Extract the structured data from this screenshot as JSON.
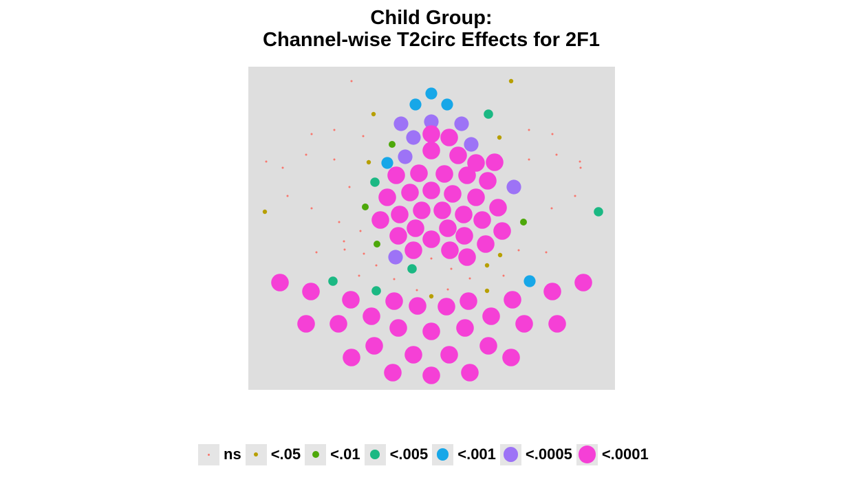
{
  "chart_data": {
    "type": "scatter",
    "title": "Child Group:",
    "subtitle": "Channel-wise T2circ Effects for 2F1",
    "panel_background": "#dedede",
    "grid": false,
    "legend_position": "bottom",
    "categories": [
      {
        "label": "ns",
        "color": "#f8766d"
      },
      {
        "label": "<.05",
        "color": "#b79f00"
      },
      {
        "label": "<.01",
        "color": "#4da80a"
      },
      {
        "label": "<.005",
        "color": "#1bb883"
      },
      {
        "label": "<.001",
        "color": "#17a7e8"
      },
      {
        "label": "<.0005",
        "color": "#9d73f6"
      },
      {
        "label": "<.0001",
        "color": "#f540d6"
      }
    ],
    "x_range": [
      0,
      533
    ],
    "y_range": [
      0,
      470
    ],
    "points": [
      [
        150,
        21,
        0
      ],
      [
        382,
        21,
        1
      ],
      [
        266,
        39,
        4
      ],
      [
        243,
        55,
        4
      ],
      [
        289,
        55,
        4
      ],
      [
        182,
        69,
        1
      ],
      [
        349,
        69,
        3
      ],
      [
        222,
        83,
        5
      ],
      [
        266,
        80,
        5
      ],
      [
        310,
        83,
        5
      ],
      [
        92,
        98,
        0
      ],
      [
        125,
        92,
        0
      ],
      [
        167,
        101,
        0
      ],
      [
        240,
        103,
        5
      ],
      [
        266,
        98,
        6
      ],
      [
        292,
        103,
        6
      ],
      [
        365,
        103,
        1
      ],
      [
        408,
        92,
        0
      ],
      [
        442,
        98,
        0
      ],
      [
        209,
        113,
        2
      ],
      [
        324,
        113,
        5
      ],
      [
        266,
        122,
        6
      ],
      [
        84,
        128,
        0
      ],
      [
        125,
        135,
        0
      ],
      [
        448,
        128,
        0
      ],
      [
        408,
        135,
        0
      ],
      [
        228,
        131,
        5
      ],
      [
        305,
        129,
        6
      ],
      [
        331,
        140,
        6
      ],
      [
        358,
        139,
        6
      ],
      [
        26,
        138,
        0
      ],
      [
        50,
        147,
        0
      ],
      [
        175,
        139,
        1
      ],
      [
        202,
        140,
        4
      ],
      [
        482,
        138,
        0
      ],
      [
        483,
        147,
        0
      ],
      [
        215,
        158,
        6
      ],
      [
        248,
        155,
        6
      ],
      [
        285,
        156,
        6
      ],
      [
        318,
        158,
        6
      ],
      [
        348,
        166,
        6
      ],
      [
        184,
        168,
        3
      ],
      [
        147,
        175,
        0
      ],
      [
        386,
        175,
        5
      ],
      [
        57,
        188,
        0
      ],
      [
        475,
        188,
        0
      ],
      [
        235,
        183,
        6
      ],
      [
        266,
        180,
        6
      ],
      [
        297,
        185,
        6
      ],
      [
        202,
        190,
        6
      ],
      [
        331,
        190,
        6
      ],
      [
        24,
        211,
        1
      ],
      [
        92,
        206,
        0
      ],
      [
        170,
        204,
        2
      ],
      [
        252,
        209,
        6
      ],
      [
        282,
        209,
        6
      ],
      [
        220,
        215,
        6
      ],
      [
        313,
        215,
        6
      ],
      [
        363,
        205,
        6
      ],
      [
        441,
        206,
        0
      ],
      [
        509,
        211,
        3
      ],
      [
        192,
        223,
        6
      ],
      [
        340,
        223,
        6
      ],
      [
        132,
        226,
        0
      ],
      [
        400,
        226,
        2
      ],
      [
        163,
        239,
        0
      ],
      [
        243,
        235,
        6
      ],
      [
        290,
        235,
        6
      ],
      [
        218,
        246,
        6
      ],
      [
        314,
        246,
        6
      ],
      [
        369,
        239,
        6
      ],
      [
        266,
        251,
        6
      ],
      [
        139,
        254,
        0
      ],
      [
        187,
        258,
        2
      ],
      [
        345,
        258,
        6
      ],
      [
        240,
        267,
        6
      ],
      [
        293,
        267,
        6
      ],
      [
        99,
        270,
        0
      ],
      [
        140,
        266,
        0
      ],
      [
        168,
        272,
        0
      ],
      [
        393,
        267,
        0
      ],
      [
        433,
        270,
        0
      ],
      [
        318,
        277,
        6
      ],
      [
        214,
        277,
        5
      ],
      [
        266,
        279,
        0
      ],
      [
        366,
        274,
        1
      ],
      [
        186,
        289,
        0
      ],
      [
        295,
        294,
        0
      ],
      [
        347,
        289,
        1
      ],
      [
        238,
        294,
        3
      ],
      [
        46,
        314,
        6
      ],
      [
        123,
        312,
        3
      ],
      [
        161,
        304,
        0
      ],
      [
        212,
        309,
        0
      ],
      [
        245,
        325,
        0
      ],
      [
        290,
        324,
        0
      ],
      [
        322,
        308,
        0
      ],
      [
        371,
        304,
        0
      ],
      [
        409,
        312,
        4
      ],
      [
        487,
        314,
        6
      ],
      [
        91,
        327,
        6
      ],
      [
        186,
        326,
        3
      ],
      [
        266,
        334,
        1
      ],
      [
        347,
        326,
        1
      ],
      [
        442,
        327,
        6
      ],
      [
        149,
        339,
        6
      ],
      [
        212,
        341,
        6
      ],
      [
        246,
        348,
        6
      ],
      [
        288,
        349,
        6
      ],
      [
        320,
        341,
        6
      ],
      [
        384,
        339,
        6
      ],
      [
        179,
        363,
        6
      ],
      [
        353,
        363,
        6
      ],
      [
        84,
        374,
        6
      ],
      [
        131,
        374,
        6
      ],
      [
        218,
        380,
        6
      ],
      [
        266,
        385,
        6
      ],
      [
        315,
        380,
        6
      ],
      [
        401,
        374,
        6
      ],
      [
        449,
        374,
        6
      ],
      [
        183,
        406,
        6
      ],
      [
        349,
        406,
        6
      ],
      [
        150,
        423,
        6
      ],
      [
        240,
        419,
        6
      ],
      [
        292,
        419,
        6
      ],
      [
        382,
        423,
        6
      ],
      [
        210,
        445,
        6
      ],
      [
        266,
        449,
        6
      ],
      [
        322,
        445,
        6
      ]
    ]
  }
}
